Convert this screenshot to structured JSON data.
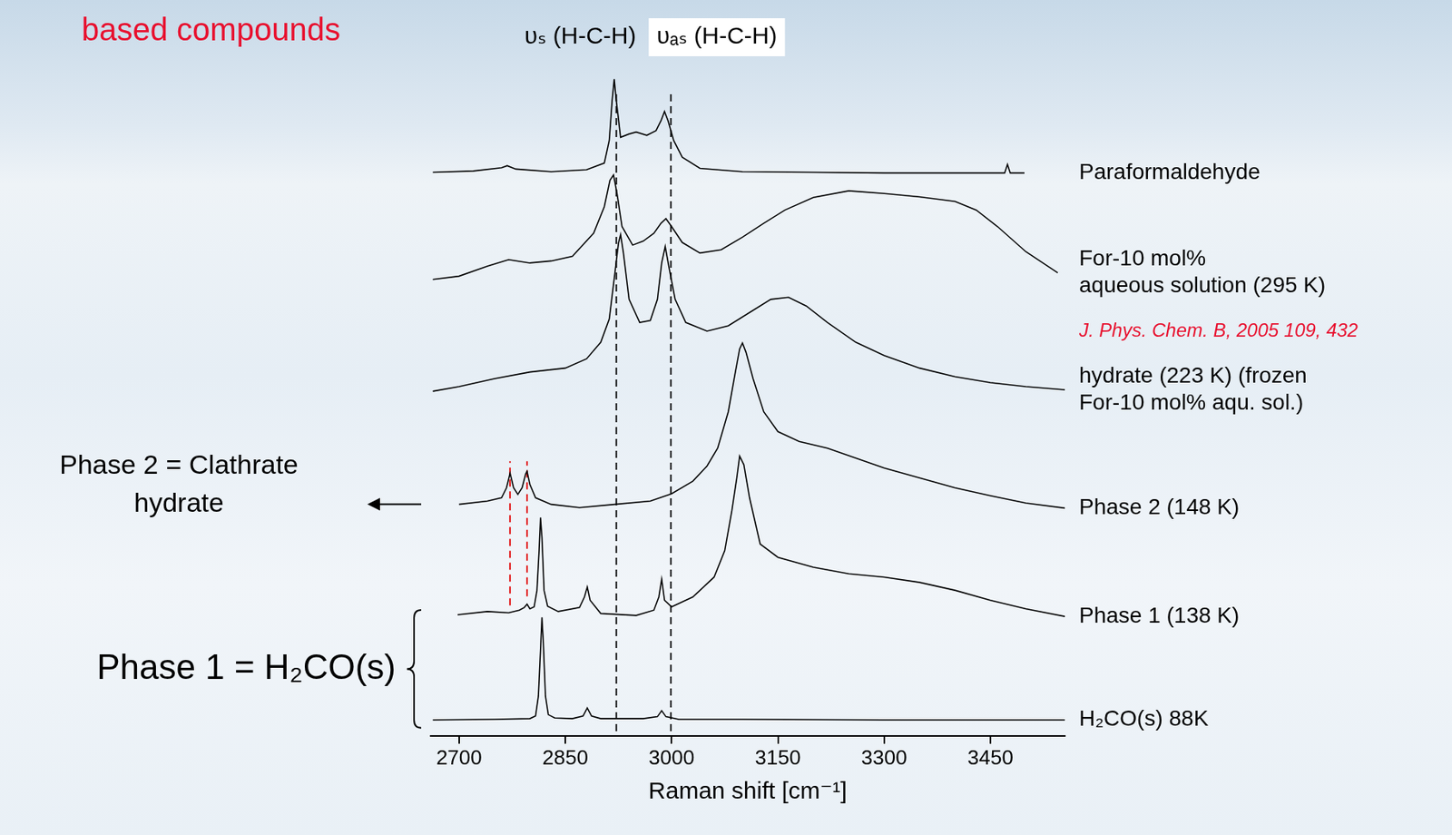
{
  "chart_data": {
    "type": "line",
    "title": "based compounds",
    "x_label": "Raman shift [cm⁻¹]",
    "xlim": [
      2660,
      3555
    ],
    "xticks": [
      2700,
      2850,
      3000,
      3150,
      3300,
      3450
    ],
    "ylim": [
      0,
      100
    ],
    "grid": false,
    "tick_labels": "x",
    "series": [
      {
        "name": "Paraformaldehyde",
        "color": "#000000",
        "x": [
          2663,
          2720,
          2760,
          2768,
          2780,
          2830,
          2880,
          2905,
          2912,
          2916,
          2919,
          2922,
          2928,
          2940,
          2950,
          2965,
          2978,
          2985,
          2990,
          2995,
          3003,
          3015,
          3040,
          3100,
          3200,
          3300,
          3400,
          3470,
          3474,
          3478,
          3498
        ],
        "values": [
          85.2,
          85.4,
          85.9,
          86.2,
          85.7,
          85.3,
          85.6,
          86.6,
          90,
          96,
          99.3,
          96,
          90.5,
          91,
          91.3,
          90.8,
          91.5,
          93,
          94.4,
          93,
          90,
          87.5,
          85.8,
          85.3,
          85.2,
          85.1,
          85.1,
          85.1,
          86.4,
          85.1,
          85.1
        ]
      },
      {
        "name": "For-10 mol%\naqueous solution (295 K)",
        "color": "#000000",
        "x": [
          2663,
          2700,
          2740,
          2770,
          2800,
          2830,
          2860,
          2890,
          2905,
          2913,
          2918,
          2923,
          2930,
          2945,
          2960,
          2975,
          2985,
          2992,
          3000,
          3015,
          3040,
          3070,
          3100,
          3130,
          3160,
          3200,
          3250,
          3300,
          3350,
          3400,
          3430,
          3460,
          3500,
          3545
        ],
        "values": [
          69,
          69.5,
          71,
          72,
          71.5,
          71.8,
          72.5,
          76,
          80,
          84,
          84.8,
          82,
          77,
          74.2,
          74.8,
          76,
          77.5,
          78.2,
          77,
          74.6,
          73,
          73.5,
          75.4,
          77.5,
          79.5,
          81.4,
          82.4,
          82,
          81.5,
          80.8,
          79.5,
          77,
          73.2,
          70
        ]
      },
      {
        "name": "hydrate (223 K) (frozen\nFor-10 mol% aqu. sol.)",
        "color": "#000000",
        "x": [
          2663,
          2700,
          2750,
          2800,
          2850,
          2880,
          2900,
          2912,
          2920,
          2925,
          2928,
          2932,
          2940,
          2955,
          2970,
          2980,
          2986,
          2991,
          2996,
          3005,
          3020,
          3050,
          3080,
          3110,
          3140,
          3165,
          3190,
          3220,
          3260,
          3300,
          3350,
          3400,
          3450,
          3500,
          3557
        ],
        "values": [
          52.1,
          52.8,
          54,
          55,
          55.6,
          57,
          59.5,
          63,
          70,
          74.5,
          75.8,
          73,
          66,
          62.5,
          62.8,
          66,
          71.5,
          74,
          71,
          66,
          62.5,
          61.2,
          62,
          64,
          66,
          66.3,
          65,
          62.5,
          59.5,
          57.5,
          55.6,
          54.3,
          53.4,
          52.8,
          52.3
        ]
      },
      {
        "name": "Phase 2 (148 K)",
        "color": "#000000",
        "x": [
          2700,
          2740,
          2760,
          2767,
          2772,
          2777,
          2783,
          2789,
          2794,
          2796,
          2800,
          2808,
          2830,
          2870,
          2920,
          2970,
          3000,
          3030,
          3050,
          3065,
          3080,
          3090,
          3096,
          3100,
          3105,
          3115,
          3130,
          3150,
          3180,
          3220,
          3260,
          3300,
          3350,
          3400,
          3450,
          3500,
          3557
        ],
        "values": [
          35.0,
          35.5,
          36,
          37.5,
          39.7,
          37.5,
          36.5,
          37.5,
          39.6,
          40,
          38,
          36,
          35,
          34.5,
          35,
          35.5,
          36.6,
          38.5,
          40.8,
          43.5,
          49,
          55,
          58.5,
          59.4,
          58,
          54,
          49,
          46,
          44.5,
          43.5,
          42,
          40.5,
          39,
          37.5,
          36.3,
          35.2,
          34.4
        ]
      },
      {
        "name": "Phase 1 (138 K)",
        "color": "#000000",
        "x": [
          2698,
          2740,
          2770,
          2785,
          2792,
          2796,
          2800,
          2806,
          2810,
          2813,
          2815,
          2817,
          2820,
          2825,
          2840,
          2870,
          2877,
          2881,
          2885,
          2900,
          2950,
          2975,
          2982,
          2986,
          2990,
          3000,
          3030,
          3060,
          3075,
          3085,
          3092,
          3096,
          3102,
          3110,
          3125,
          3150,
          3200,
          3250,
          3300,
          3350,
          3400,
          3450,
          3500,
          3557
        ],
        "values": [
          18.3,
          18.8,
          18.6,
          19.0,
          19.4,
          19.9,
          19.2,
          19.5,
          22,
          28,
          33,
          30,
          22,
          19.6,
          18.8,
          19.4,
          21,
          22.5,
          20.5,
          18.5,
          18.2,
          19,
          21,
          23.7,
          20.5,
          19.5,
          21,
          24,
          28,
          34,
          39,
          42.3,
          41,
          36,
          29,
          27,
          25.5,
          24.5,
          24,
          23.2,
          22,
          20.5,
          19.2,
          18
        ]
      },
      {
        "name": "H₂CO(s) 88K",
        "color": "#000000",
        "x": [
          2663,
          2750,
          2800,
          2808,
          2812,
          2815,
          2817,
          2819,
          2822,
          2826,
          2835,
          2860,
          2875,
          2881,
          2887,
          2900,
          2960,
          2980,
          2986,
          2992,
          3010,
          3100,
          3300,
          3557
        ],
        "values": [
          2.4,
          2.5,
          2.6,
          3.0,
          6,
          13,
          17.9,
          14,
          6,
          3.2,
          2.7,
          2.6,
          3.0,
          4.2,
          3.0,
          2.6,
          2.6,
          2.9,
          3.8,
          2.9,
          2.5,
          2.5,
          2.4,
          2.4
        ]
      }
    ],
    "reference_lines": [
      {
        "x": 2922,
        "y_range": [
          0.7,
          97.2
        ],
        "color": "#000000",
        "line_style": "dashed",
        "label": "υₛ (H-C-H)"
      },
      {
        "x": 2999,
        "y_range": [
          0.7,
          97.2
        ],
        "color": "#000000",
        "line_style": "dashed",
        "label": "υₐₛ (H-C-H)"
      },
      {
        "x": 2772,
        "y_range": [
          19.7,
          41.5
        ],
        "color": "#e00000",
        "line_style": "dashed"
      },
      {
        "x": 2796,
        "y_range": [
          21.1,
          41.5
        ],
        "color": "#e00000",
        "line_style": "dashed"
      }
    ],
    "annotations": [
      {
        "text": "J. Phys. Chem. B, 2005 109, 432"
      },
      {
        "text": "Phase 2 = Clathrate\nhydrate",
        "target": [
          "Phase 2 (148 K)"
        ]
      },
      {
        "text": "Phase 1 = H₂CO(s)",
        "target": [
          "Phase 1 (138 K)",
          "H₂CO(s) 88K"
        ]
      }
    ]
  }
}
